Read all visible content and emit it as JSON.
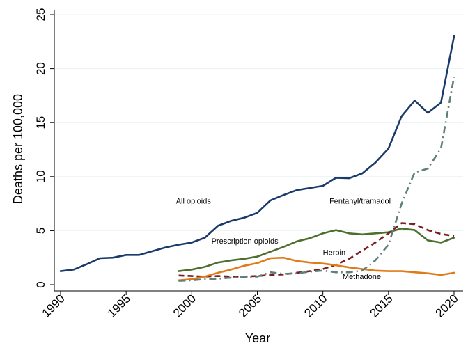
{
  "chart_data": {
    "type": "line",
    "title": "",
    "xlabel": "Year",
    "ylabel": "Deaths per 100,000",
    "xlim": [
      1990,
      2020
    ],
    "ylim": [
      0,
      25
    ],
    "xticks": [
      1990,
      1995,
      2000,
      2005,
      2010,
      2015,
      2020
    ],
    "yticks": [
      0,
      5,
      10,
      15,
      20,
      25
    ],
    "grid": true,
    "series": [
      {
        "name": "All opioids",
        "color": "#1a3a6b",
        "dash": "solid",
        "x": [
          1990,
          1991,
          1992,
          1993,
          1994,
          1995,
          1996,
          1997,
          1998,
          1999,
          2000,
          2001,
          2002,
          2003,
          2004,
          2005,
          2006,
          2007,
          2008,
          2009,
          2010,
          2011,
          2012,
          2013,
          2014,
          2015,
          2016,
          2017,
          2018,
          2019,
          2020
        ],
        "values": [
          1.25,
          1.4,
          1.9,
          2.45,
          2.5,
          2.75,
          2.75,
          3.1,
          3.45,
          3.7,
          3.9,
          4.35,
          5.45,
          5.9,
          6.2,
          6.65,
          7.8,
          8.3,
          8.75,
          8.95,
          9.15,
          9.9,
          9.85,
          10.3,
          11.3,
          12.6,
          15.6,
          17.05,
          15.9,
          16.85,
          23.0
        ]
      },
      {
        "name": "Prescription opioids",
        "color": "#4e6e2e",
        "dash": "solid",
        "x": [
          1999,
          2000,
          2001,
          2002,
          2003,
          2004,
          2005,
          2006,
          2007,
          2008,
          2009,
          2010,
          2011,
          2012,
          2013,
          2014,
          2015,
          2016,
          2017,
          2018,
          2019,
          2020
        ],
        "values": [
          1.25,
          1.4,
          1.65,
          2.05,
          2.25,
          2.4,
          2.6,
          3.05,
          3.5,
          4.0,
          4.3,
          4.75,
          5.05,
          4.75,
          4.65,
          4.75,
          4.85,
          5.2,
          5.05,
          4.1,
          3.9,
          4.35
        ]
      },
      {
        "name": "Heroin",
        "color": "#7a1e22",
        "dash": "dash",
        "x": [
          1999,
          2000,
          2001,
          2002,
          2003,
          2004,
          2005,
          2006,
          2007,
          2008,
          2009,
          2010,
          2011,
          2012,
          2013,
          2014,
          2015,
          2016,
          2017,
          2018,
          2019,
          2020
        ],
        "values": [
          0.85,
          0.8,
          0.75,
          0.8,
          0.75,
          0.75,
          0.8,
          0.9,
          0.95,
          1.1,
          1.25,
          1.45,
          1.85,
          2.4,
          3.15,
          3.9,
          4.75,
          5.7,
          5.6,
          5.05,
          4.7,
          4.5
        ]
      },
      {
        "name": "Methadone",
        "color": "#e07b1a",
        "dash": "solid",
        "x": [
          1999,
          2000,
          2001,
          2002,
          2003,
          2004,
          2005,
          2006,
          2007,
          2008,
          2009,
          2010,
          2011,
          2012,
          2013,
          2014,
          2015,
          2016,
          2017,
          2018,
          2019,
          2020
        ],
        "values": [
          0.4,
          0.5,
          0.75,
          1.1,
          1.4,
          1.75,
          2.0,
          2.45,
          2.5,
          2.2,
          2.05,
          1.95,
          1.8,
          1.6,
          1.45,
          1.3,
          1.25,
          1.25,
          1.15,
          1.05,
          0.9,
          1.1
        ]
      },
      {
        "name": "Fentanyl/tramadol",
        "color": "#5f7f7a",
        "dash": "dashdot",
        "x": [
          1999,
          2000,
          2001,
          2002,
          2003,
          2004,
          2005,
          2006,
          2007,
          2008,
          2009,
          2010,
          2011,
          2012,
          2013,
          2014,
          2015,
          2016,
          2017,
          2018,
          2019,
          2020
        ],
        "values": [
          0.35,
          0.4,
          0.5,
          0.55,
          0.65,
          0.7,
          0.75,
          1.15,
          1.0,
          1.05,
          1.2,
          1.3,
          1.15,
          1.15,
          1.3,
          2.25,
          3.7,
          7.5,
          10.4,
          10.75,
          12.6,
          19.25
        ]
      }
    ],
    "annotations": [
      {
        "text": "All opioids",
        "x": 1998.8,
        "y": 7.5
      },
      {
        "text": "Fentanyl/tramadol",
        "x": 2010.5,
        "y": 7.5
      },
      {
        "text": "Prescription opioids",
        "x": 2001.5,
        "y": 3.8
      },
      {
        "text": "Heroin",
        "x": 2010.0,
        "y": 2.75
      },
      {
        "text": "Methadone",
        "x": 2011.5,
        "y": 0.5
      }
    ]
  }
}
